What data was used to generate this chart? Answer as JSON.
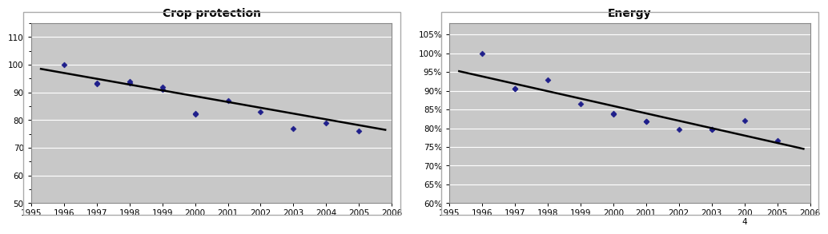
{
  "chart1": {
    "title": "Crop protection",
    "x_data": [
      1996,
      1997,
      1997,
      1998,
      1998,
      1999,
      1999,
      2000,
      2000,
      2001,
      2002,
      2003,
      2004,
      2005
    ],
    "y_data": [
      100,
      93,
      93.5,
      93.5,
      94,
      91,
      92,
      82,
      82.5,
      87,
      83,
      77,
      79,
      76
    ],
    "trendline_x": [
      1995.3,
      2005.8
    ],
    "trendline_y": [
      98.5,
      76.5
    ],
    "ylim": [
      50,
      115
    ],
    "yticks": [
      50,
      60,
      70,
      80,
      90,
      100,
      110
    ],
    "ytick_labels": [
      "50",
      "60",
      "70",
      "80",
      "90",
      "100",
      "110"
    ],
    "xlim": [
      1995,
      2006
    ],
    "xticks": [
      1995,
      1996,
      1997,
      1998,
      1999,
      2000,
      2001,
      2002,
      2003,
      2004,
      2005,
      2006
    ],
    "bg_color": "#c8c8c8",
    "marker_color": "#1F1F8B",
    "line_color": "#000000"
  },
  "chart2": {
    "title": "Energy",
    "x_data": [
      1996,
      1997,
      1997,
      1998,
      1999,
      2000,
      2000,
      2001,
      2001,
      2002,
      2003,
      2003,
      2004,
      2005
    ],
    "y_data": [
      1.0,
      0.905,
      0.906,
      0.928,
      0.864,
      0.838,
      0.839,
      0.818,
      0.819,
      0.796,
      0.797,
      0.797,
      0.82,
      0.768
    ],
    "trendline_x": [
      1995.3,
      2005.8
    ],
    "trendline_y": [
      0.952,
      0.745
    ],
    "ylim": [
      0.6,
      1.08
    ],
    "yticks": [
      0.6,
      0.65,
      0.7,
      0.75,
      0.8,
      0.85,
      0.9,
      0.95,
      1.0,
      1.05
    ],
    "yticklabels": [
      "60%",
      "65%",
      "70%",
      "75%",
      "80%",
      "85%",
      "90%",
      "95%",
      "100%",
      "105%"
    ],
    "xlim": [
      1995,
      2006
    ],
    "xticks": [
      1995,
      1996,
      1997,
      1998,
      1999,
      2000,
      2001,
      2002,
      2003,
      2004,
      2005,
      2006
    ],
    "xticklabels": [
      "1995",
      "1996",
      "1997",
      "1998",
      "1999",
      "2000",
      "2001",
      "2002",
      "2003",
      "200\n4",
      "2005",
      "2006"
    ],
    "bg_color": "#c8c8c8",
    "marker_color": "#1F1F8B",
    "line_color": "#000000"
  },
  "fig_bg_color": "#ffffff"
}
